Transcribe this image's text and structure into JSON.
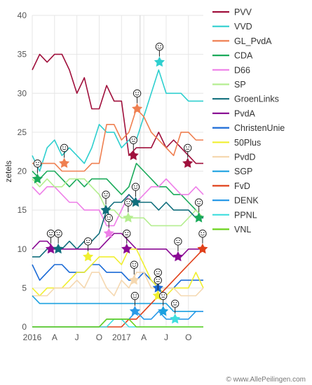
{
  "chart_data": {
    "type": "line",
    "ylabel": "zetels",
    "ylim": [
      0,
      40
    ],
    "y_ticks": [
      "0",
      "5",
      "10",
      "15",
      "20",
      "25",
      "30",
      "35",
      "40"
    ],
    "x_ticks": [
      "2016",
      "A",
      "J",
      "O",
      "2017",
      "A",
      "J",
      "O"
    ],
    "x": [
      "2016-01",
      "2016-02",
      "2016-03",
      "2016-04",
      "2016-05",
      "2016-06",
      "2016-07",
      "2016-08",
      "2016-09",
      "2016-10",
      "2016-11",
      "2016-12",
      "2017-01",
      "2017-02",
      "2017-03",
      "2017-04",
      "2017-05",
      "2017-06",
      "2017-07",
      "2017-08",
      "2017-09",
      "2017-10",
      "2017-11",
      "2017-12"
    ],
    "election_index": 14.5,
    "credit": "© www.AllePeilingen.com",
    "series": [
      {
        "name": "PVV",
        "color": "#a0103c",
        "values": [
          33,
          35,
          34,
          35,
          35,
          33,
          30,
          32,
          28,
          28,
          31,
          29,
          29,
          22,
          23,
          23,
          23,
          25,
          23,
          24,
          23,
          22,
          21,
          21
        ]
      },
      {
        "name": "VVD",
        "color": "#2ecfcf",
        "values": [
          22,
          20,
          23,
          24,
          22,
          23,
          22,
          21,
          23,
          26,
          25,
          25,
          23,
          24,
          24,
          27,
          30,
          33,
          30,
          30,
          30,
          29,
          29,
          29
        ]
      },
      {
        "name": "GL_PvdA",
        "color": "#ef7f50",
        "values": [
          21,
          21,
          21,
          21,
          20,
          20,
          20,
          20,
          21,
          21,
          26,
          26,
          24,
          25,
          28,
          27,
          25,
          24,
          23,
          22,
          25,
          25,
          24,
          24
        ]
      },
      {
        "name": "CDA",
        "color": "#1aaa5a",
        "values": [
          20,
          19,
          20,
          20,
          19,
          18,
          19,
          18,
          19,
          19,
          19,
          18,
          17,
          18,
          21,
          20,
          19,
          18,
          18,
          17,
          17,
          16,
          15,
          14
        ]
      },
      {
        "name": "D66",
        "color": "#ee7fe8",
        "values": [
          18,
          17,
          18,
          18,
          17,
          16,
          16,
          15,
          15,
          15,
          13,
          13,
          15,
          17,
          16,
          17,
          18,
          18,
          19,
          18,
          17,
          17,
          18,
          17
        ]
      },
      {
        "name": "SP",
        "color": "#b5ee90",
        "values": [
          19,
          18,
          19,
          18,
          18,
          19,
          19,
          19,
          18,
          17,
          15,
          15,
          14,
          14,
          14,
          14,
          13,
          13,
          13,
          13,
          13,
          14,
          15,
          14
        ]
      },
      {
        "name": "GroenLinks",
        "color": "#106e7c",
        "values": [
          9,
          9,
          10,
          10,
          10,
          11,
          10,
          11,
          11,
          12,
          15,
          16,
          16,
          17,
          16,
          16,
          16,
          15,
          16,
          15,
          15,
          15,
          14,
          14
        ]
      },
      {
        "name": "PvdA",
        "color": "#8a0a94",
        "values": [
          10,
          11,
          11,
          10,
          10,
          10,
          10,
          10,
          10,
          10,
          11,
          12,
          12,
          11,
          10,
          10,
          10,
          10,
          10,
          9,
          9,
          10,
          10,
          10
        ]
      },
      {
        "name": "ChristenUnie",
        "color": "#1a6ad6",
        "values": [
          8,
          6,
          7,
          8,
          8,
          7,
          7,
          7,
          8,
          8,
          7,
          7,
          7,
          6,
          6,
          7,
          6,
          5,
          5,
          5,
          6,
          6,
          6,
          6
        ]
      },
      {
        "name": "50Plus",
        "color": "#f0ef30",
        "values": [
          5,
          4,
          5,
          5,
          5,
          6,
          7,
          7,
          8,
          9,
          9,
          9,
          8,
          10,
          10,
          8,
          6,
          5,
          4,
          5,
          5,
          5,
          7,
          5
        ]
      },
      {
        "name": "PvdD",
        "color": "#f5d8b0",
        "values": [
          4,
          4,
          4,
          5,
          5,
          5,
          6,
          5,
          7,
          7,
          5,
          4,
          6,
          5,
          7,
          7,
          5,
          5,
          5,
          5,
          4,
          4,
          4,
          5
        ]
      },
      {
        "name": "SGP",
        "color": "#1aa0e0",
        "values": [
          4,
          3,
          3,
          3,
          3,
          3,
          3,
          3,
          3,
          3,
          3,
          3,
          3,
          3,
          3,
          3,
          3,
          3,
          3,
          2,
          2,
          2,
          2,
          2
        ]
      },
      {
        "name": "FvD",
        "color": "#e0401a",
        "values": [
          0,
          0,
          0,
          0,
          0,
          0,
          0,
          0,
          0,
          0,
          0,
          0,
          0,
          1,
          1,
          2,
          3,
          4,
          5,
          6,
          7,
          8,
          9,
          10
        ]
      },
      {
        "name": "DENK",
        "color": "#2a9ae8",
        "values": [
          0,
          0,
          0,
          0,
          0,
          0,
          0,
          0,
          0,
          0,
          1,
          1,
          1,
          1,
          2,
          1,
          1,
          2,
          1,
          1,
          1,
          1,
          2,
          2
        ]
      },
      {
        "name": "PPNL",
        "color": "#40dede",
        "values": [
          0,
          0,
          0,
          0,
          0,
          0,
          0,
          0,
          0,
          0,
          0,
          1,
          1,
          0,
          0,
          0,
          0,
          0,
          0,
          0,
          0,
          0,
          0,
          0
        ]
      },
      {
        "name": "VNL",
        "color": "#6ad21a",
        "values": [
          0,
          0,
          0,
          0,
          0,
          0,
          0,
          0,
          0,
          0,
          1,
          1,
          1,
          1,
          0,
          0,
          0,
          0,
          0,
          0,
          0,
          0,
          0,
          0
        ]
      }
    ],
    "markers": [
      {
        "series": "CDA",
        "month": 0.7,
        "value": 19,
        "icon": "neutral-face-icon"
      },
      {
        "series": "GL_PvdA",
        "month": 4.3,
        "value": 21,
        "icon": "smile-face-icon"
      },
      {
        "series": "PvdA",
        "month": 2.5,
        "value": 10,
        "icon": "neutral-face-icon"
      },
      {
        "series": "GroenLinks",
        "month": 3.5,
        "value": 10,
        "icon": "neutral-face-icon"
      },
      {
        "series": "50Plus",
        "month": 7.5,
        "value": 9,
        "icon": "neutral-face-icon"
      },
      {
        "series": "GroenLinks",
        "month": 9.9,
        "value": 15,
        "icon": "neutral-face-icon"
      },
      {
        "series": "D66",
        "month": 10.3,
        "value": 12,
        "icon": "smile-face-icon"
      },
      {
        "series": "PvdA",
        "month": 12.7,
        "value": 10,
        "icon": "neutral-face-icon"
      },
      {
        "series": "SP",
        "month": 12.9,
        "value": 14,
        "icon": "neutral-face-icon"
      },
      {
        "series": "GroenLinks",
        "month": 13.9,
        "value": 16,
        "icon": "smile-face-icon"
      },
      {
        "series": "PVV",
        "month": 13.6,
        "value": 22,
        "icon": "neutral-face-icon"
      },
      {
        "series": "GL_PvdA",
        "month": 14.1,
        "value": 28,
        "icon": "smile-face-icon"
      },
      {
        "series": "PvdD",
        "month": 13.7,
        "value": 6,
        "icon": "smile-face-icon"
      },
      {
        "series": "DENK",
        "month": 13.8,
        "value": 2,
        "icon": "smile-face-icon"
      },
      {
        "series": "VVD",
        "month": 17.1,
        "value": 34,
        "icon": "smile-face-icon"
      },
      {
        "series": "ChristenUnie",
        "month": 16.9,
        "value": 5,
        "icon": "neutral-face-icon"
      },
      {
        "series": "50Plus",
        "month": 16.9,
        "value": 4,
        "icon": "neutral-face-icon"
      },
      {
        "series": "SGP",
        "month": 17.6,
        "value": 2,
        "icon": "neutral-face-icon"
      },
      {
        "series": "PvdA",
        "month": 19.6,
        "value": 9,
        "icon": "neutral-face-icon"
      },
      {
        "series": "PPNL",
        "month": 19.2,
        "value": 1,
        "icon": "neutral-face-icon"
      },
      {
        "series": "PVV",
        "month": 20.9,
        "value": 21,
        "icon": "neutral-face-icon"
      },
      {
        "series": "CDA",
        "month": 22.4,
        "value": 14,
        "icon": "neutral-face-icon"
      },
      {
        "series": "FvD",
        "month": 22.9,
        "value": 10,
        "icon": "smile-face-icon"
      }
    ]
  }
}
